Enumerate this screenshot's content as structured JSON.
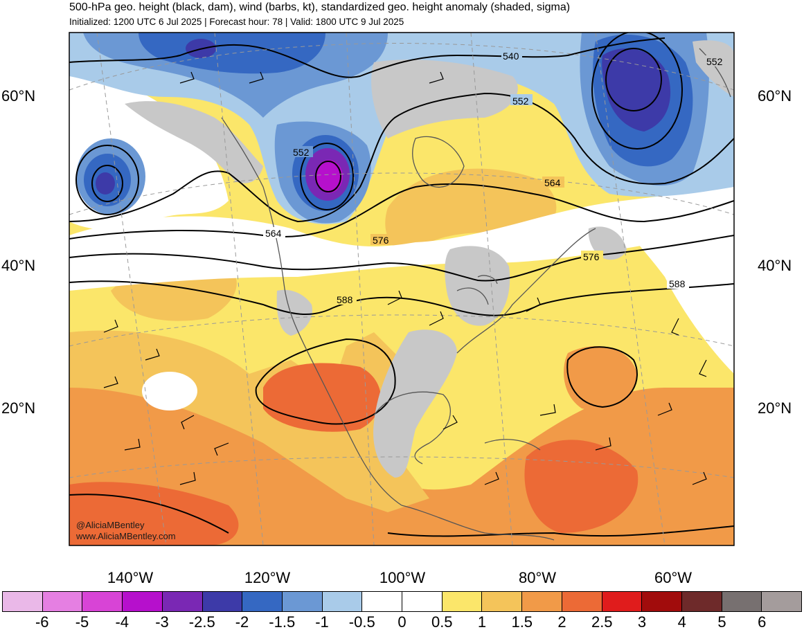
{
  "header": {
    "title": "500-hPa geo. height (black, dam), wind (barbs, kt), standardized geo. height anomaly (shaded, sigma)",
    "subtitle": "Initialized: 1200 UTC 6 Jul 2025 | Forecast hour: 78 | Valid: 1800 UTC 9 Jul 2025"
  },
  "map": {
    "lat_labels": [
      "60°N",
      "40°N",
      "20°N"
    ],
    "lon_labels": [
      "140°W",
      "120°W",
      "100°W",
      "80°W",
      "60°W"
    ],
    "contour_labels": [
      "540",
      "552",
      "552",
      "552",
      "564",
      "564",
      "576",
      "576",
      "588",
      "588"
    ],
    "land_color": "#c8c8c8",
    "coast_color": "#555555"
  },
  "watermark": {
    "line1": "@AliciaMBentley",
    "line2": "www.AliciaMBentley.com"
  },
  "colorbar": {
    "colors": [
      "#eab8e8",
      "#e57fe2",
      "#d844d6",
      "#b610cc",
      "#7a28b4",
      "#3d3aa8",
      "#3568c2",
      "#6b98d4",
      "#a9cbe9",
      "#ffffff",
      "#ffffff",
      "#fbe66a",
      "#f4c45a",
      "#f19a48",
      "#ec6a36",
      "#e01c1c",
      "#a10c0c",
      "#6e2a2a",
      "#777070",
      "#a49c9c"
    ],
    "ticks": [
      "-6",
      "-5",
      "-4",
      "-3",
      "-2.5",
      "-2",
      "-1.5",
      "-1",
      "-0.5",
      "0",
      "0.5",
      "1",
      "1.5",
      "2",
      "2.5",
      "3",
      "4",
      "5",
      "6"
    ]
  }
}
